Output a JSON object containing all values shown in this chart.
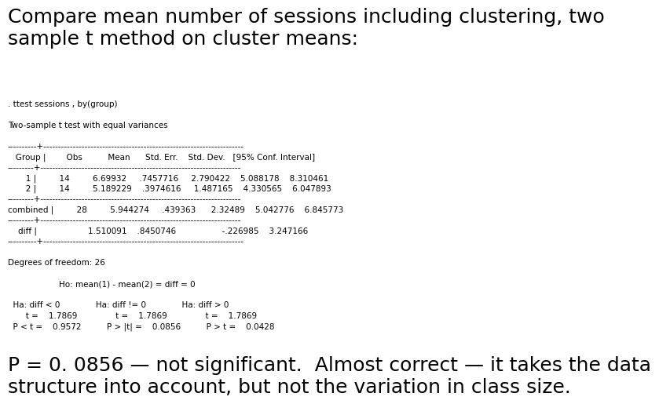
{
  "title": "Compare mean number of sessions including clustering, two\nsample t method on cluster means:",
  "title_fontsize": 18,
  "bg_color": "#ffffff",
  "monospace_lines": [
    ". ttest sessions , by(group)",
    "",
    "Two-sample t test with equal variances",
    "",
    "----------+--------------------------------------------------------------------",
    "   Group |        Obs          Mean      Std. Err.    Std. Dev.   [95% Conf. Interval]",
    "---------+--------------------------------------------------------------------",
    "       1 |         14         6.69932     .7457716     2.790422    5.088178    8.310461",
    "       2 |         14         5.189229    .3974616     1.487165    4.330565    6.047893",
    "---------+--------------------------------------------------------------------",
    "combined |         28         5.944274     .439363      2.32489    5.042776    6.845773",
    "---------+--------------------------------------------------------------------",
    "    diff |                    1.510091    .8450746                  -.226985    3.247166",
    "----------+--------------------------------------------------------------------",
    "",
    "Degrees of freedom: 26",
    "",
    "                    Ho: mean(1) - mean(2) = diff = 0",
    "",
    "  Ha: diff < 0              Ha: diff != 0              Ha: diff > 0",
    "       t =    1.7869               t =    1.7869               t =    1.7869",
    "  P < t =    0.9572          P > |t| =    0.0856          P > t =    0.0428"
  ],
  "mono_fontsize": 7.5,
  "footer_text": "P = 0. 0856 — not significant.  Almost correct — it takes the data\nstructure into account, but not the variation in class size.",
  "footer_fontsize": 18,
  "text_color": "#000000"
}
